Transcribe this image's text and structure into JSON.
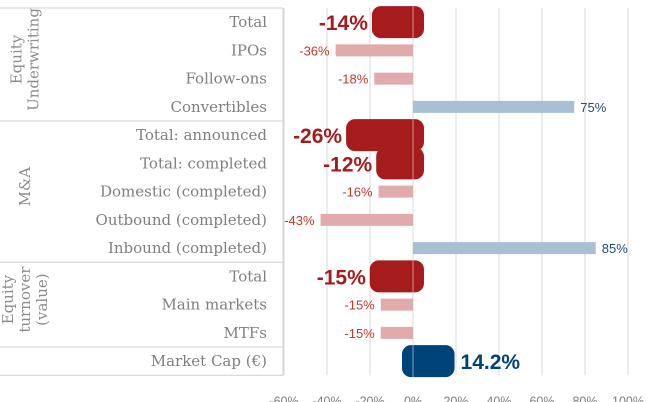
{
  "chart_data": {
    "type": "bar",
    "orientation": "horizontal",
    "xlim": [
      -60,
      100
    ],
    "x_ticks": [
      "-60%",
      "-40%",
      "-20%",
      "0%",
      "20%",
      "40%",
      "60%",
      "80%",
      "100%"
    ],
    "x_tick_values": [
      -60,
      -40,
      -20,
      0,
      20,
      40,
      60,
      80,
      100
    ],
    "grid": true,
    "groups": [
      {
        "name": "Equity Underwriting",
        "lines": [
          "Equity",
          "Underwriting"
        ],
        "start": 0,
        "count": 4
      },
      {
        "name": "M&A",
        "lines": [
          "M&A"
        ],
        "start": 4,
        "count": 5
      },
      {
        "name": "Equity turnover (value)",
        "lines": [
          "Equity",
          "turnover",
          "(value)"
        ],
        "start": 9,
        "count": 3
      },
      {
        "name": "",
        "lines": [],
        "start": 12,
        "count": 1
      }
    ],
    "categories": [
      "Total",
      "IPOs",
      "Follow-ons",
      "Convertibles",
      "Total: announced",
      "Total: completed",
      "Domestic (completed)",
      "Outbound (completed)",
      "Inbound (completed)",
      "Total",
      "Main markets",
      "MTFs",
      "Market Cap (€)"
    ],
    "values": [
      -14,
      -36,
      -18,
      75,
      -26,
      -12,
      -16,
      -43,
      85,
      -15,
      -15,
      -15,
      14.2
    ],
    "labels": [
      "-14%",
      "-36%",
      "-18%",
      "75%",
      "-26%",
      "-12%",
      "-16%",
      "-43%",
      "85%",
      "-15%",
      "-15%",
      "-15%",
      "14.2%"
    ],
    "emphasis": [
      true,
      false,
      false,
      false,
      true,
      true,
      false,
      false,
      false,
      true,
      false,
      false,
      true
    ],
    "colors": {
      "neg_strong": "#a61c1c",
      "neg_light": "#e2abab",
      "neg_label": "#c0392b",
      "pos_strong": "#004378",
      "pos_light": "#a8bfd4",
      "pos_label": "#1f4e79",
      "grid": "#d9d9d9",
      "border": "#d0d0d0"
    }
  }
}
